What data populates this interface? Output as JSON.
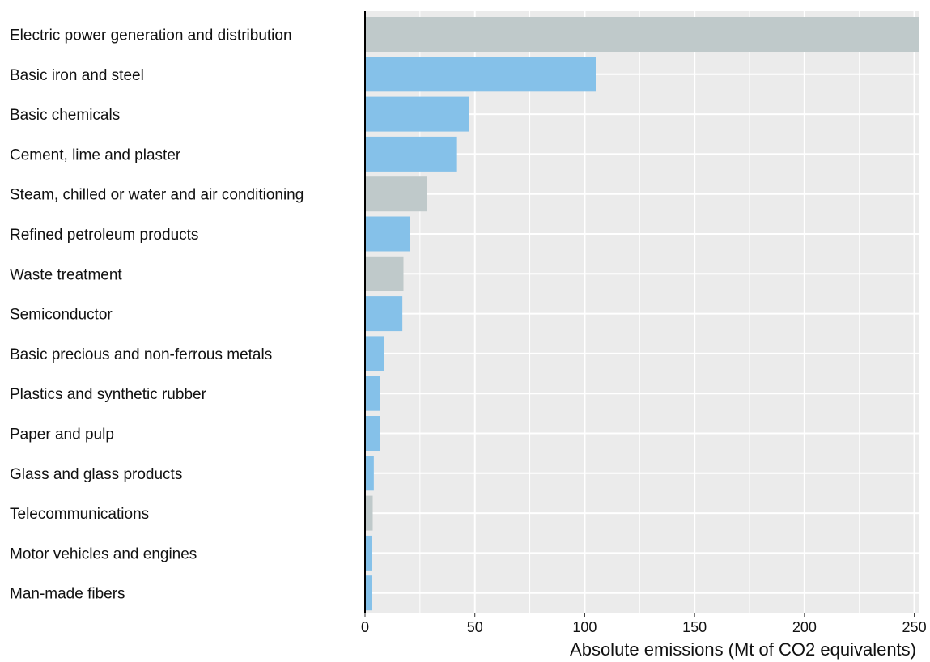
{
  "chart_data": {
    "type": "bar",
    "orientation": "horizontal",
    "title": "",
    "xlabel": "Absolute emissions (Mt of CO2 equivalents)",
    "ylabel": "",
    "xlim": [
      0,
      252
    ],
    "xticks": [
      0,
      50,
      100,
      150,
      200,
      250
    ],
    "grid": true,
    "legend": "none",
    "colors": {
      "blue": "#85c1e9",
      "gray": "#bfc9ca",
      "panel": "#ebebeb",
      "grid": "#ffffff",
      "axis": "#000000"
    },
    "categories": [
      "Electric power generation and distribution",
      "Basic iron and steel",
      "Basic chemicals",
      "Cement, lime and plaster",
      "Steam, chilled or water and air conditioning",
      "Refined petroleum products",
      "Waste treatment",
      "Semiconductor",
      "Basic precious and non-ferrous metals",
      "Plastics and synthetic rubber",
      "Paper and pulp",
      "Glass and glass products",
      "Telecommunications",
      "Motor vehicles and engines",
      "Man-made fibers"
    ],
    "values": [
      252,
      105,
      47.5,
      41.5,
      28,
      20.5,
      17.5,
      17,
      8.5,
      7,
      6.8,
      4,
      3.5,
      3,
      3
    ],
    "bar_colors": [
      "gray",
      "blue",
      "blue",
      "blue",
      "gray",
      "blue",
      "gray",
      "blue",
      "blue",
      "blue",
      "blue",
      "blue",
      "gray",
      "blue",
      "blue"
    ]
  }
}
